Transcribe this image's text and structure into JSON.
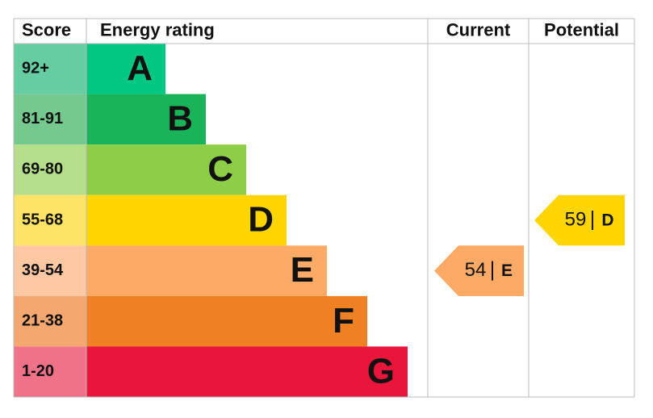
{
  "chart_data": {
    "type": "epc",
    "headers": [
      "Score",
      "Energy rating",
      "Current",
      "Potential"
    ],
    "bands": [
      {
        "score": "92+",
        "letter": "A",
        "color": "#00c781",
        "score_color": "#66cda3"
      },
      {
        "score": "81-91",
        "letter": "B",
        "color": "#19b459",
        "score_color": "#75c98f"
      },
      {
        "score": "69-80",
        "letter": "C",
        "color": "#8dce46",
        "score_color": "#b5de8b"
      },
      {
        "score": "55-68",
        "letter": "D",
        "color": "#ffd500",
        "score_color": "#ffe366"
      },
      {
        "score": "39-54",
        "letter": "E",
        "color": "#fcaa65",
        "score_color": "#fdc8a2"
      },
      {
        "score": "21-38",
        "letter": "F",
        "color": "#ef8023",
        "score_color": "#f4a76e"
      },
      {
        "score": "1-20",
        "letter": "G",
        "color": "#e9153b",
        "score_color": "#ef7289"
      }
    ],
    "current": {
      "value": 54,
      "letter": "E"
    },
    "potential": {
      "value": 59,
      "letter": "D"
    }
  }
}
